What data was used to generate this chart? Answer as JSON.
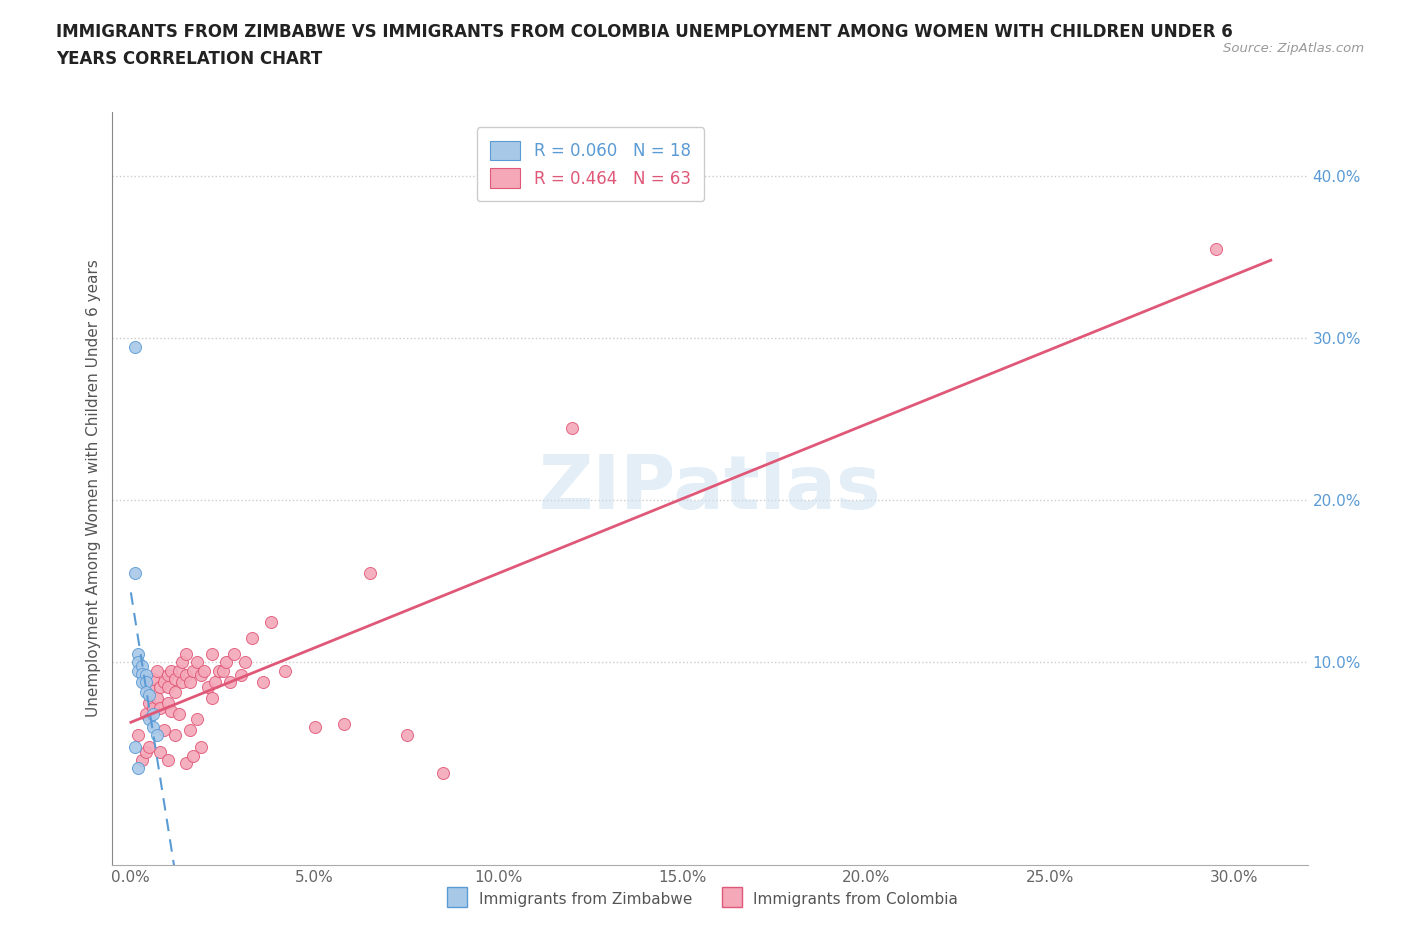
{
  "title": "IMMIGRANTS FROM ZIMBABWE VS IMMIGRANTS FROM COLOMBIA UNEMPLOYMENT AMONG WOMEN WITH CHILDREN UNDER 6\nYEARS CORRELATION CHART",
  "source": "Source: ZipAtlas.com",
  "ylabel": "Unemployment Among Women with Children Under 6 years",
  "xlabel": "",
  "R_zimbabwe": 0.06,
  "N_zimbabwe": 18,
  "R_colombia": 0.464,
  "N_colombia": 63,
  "xlim": [
    -0.005,
    0.32
  ],
  "ylim": [
    -0.025,
    0.44
  ],
  "xticks": [
    0.0,
    0.05,
    0.1,
    0.15,
    0.2,
    0.25,
    0.3
  ],
  "yticks_right": [
    0.1,
    0.2,
    0.3,
    0.4
  ],
  "watermark": "ZIPatlas",
  "color_zimbabwe": "#a8c8e8",
  "color_colombia": "#f4a8b8",
  "line_color_zimbabwe": "#5b9bd5",
  "line_color_colombia": "#e05878",
  "background_color": "#ffffff",
  "grid_color": "#cccccc",
  "zimbabwe_x": [
    0.001,
    0.001,
    0.002,
    0.002,
    0.002,
    0.003,
    0.003,
    0.003,
    0.004,
    0.004,
    0.004,
    0.005,
    0.005,
    0.006,
    0.006,
    0.007,
    0.001,
    0.002
  ],
  "zimbabwe_y": [
    0.295,
    0.155,
    0.105,
    0.1,
    0.095,
    0.098,
    0.093,
    0.088,
    0.092,
    0.088,
    0.082,
    0.08,
    0.065,
    0.068,
    0.06,
    0.055,
    0.048,
    0.035
  ],
  "colombia_x": [
    0.002,
    0.003,
    0.004,
    0.004,
    0.005,
    0.005,
    0.005,
    0.006,
    0.006,
    0.007,
    0.007,
    0.008,
    0.008,
    0.008,
    0.009,
    0.009,
    0.01,
    0.01,
    0.01,
    0.01,
    0.011,
    0.011,
    0.012,
    0.012,
    0.012,
    0.013,
    0.013,
    0.014,
    0.014,
    0.015,
    0.015,
    0.015,
    0.016,
    0.016,
    0.017,
    0.017,
    0.018,
    0.018,
    0.019,
    0.019,
    0.02,
    0.021,
    0.022,
    0.022,
    0.023,
    0.024,
    0.025,
    0.026,
    0.027,
    0.028,
    0.03,
    0.031,
    0.033,
    0.036,
    0.038,
    0.042,
    0.05,
    0.058,
    0.065,
    0.075,
    0.085,
    0.12,
    0.295
  ],
  "colombia_y": [
    0.055,
    0.04,
    0.068,
    0.045,
    0.085,
    0.075,
    0.048,
    0.09,
    0.072,
    0.095,
    0.078,
    0.085,
    0.072,
    0.045,
    0.088,
    0.058,
    0.092,
    0.085,
    0.075,
    0.04,
    0.095,
    0.07,
    0.09,
    0.082,
    0.055,
    0.095,
    0.068,
    0.1,
    0.088,
    0.105,
    0.092,
    0.038,
    0.088,
    0.058,
    0.095,
    0.042,
    0.1,
    0.065,
    0.092,
    0.048,
    0.095,
    0.085,
    0.105,
    0.078,
    0.088,
    0.095,
    0.095,
    0.1,
    0.088,
    0.105,
    0.092,
    0.1,
    0.115,
    0.088,
    0.125,
    0.095,
    0.06,
    0.062,
    0.155,
    0.055,
    0.032,
    0.245,
    0.355
  ]
}
